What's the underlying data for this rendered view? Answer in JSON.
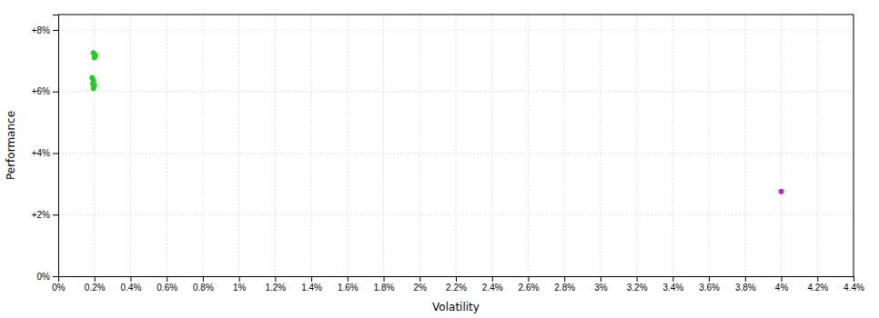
{
  "chart_data": {
    "type": "scatter",
    "xlabel": "Volatility",
    "ylabel": "Performance",
    "xlim": [
      0,
      4.4
    ],
    "ylim": [
      0,
      8.5
    ],
    "xticks": [
      {
        "value": 0,
        "label": "0%"
      },
      {
        "value": 0.2,
        "label": "0.2%"
      },
      {
        "value": 0.4,
        "label": "0.4%"
      },
      {
        "value": 0.6,
        "label": "0.6%"
      },
      {
        "value": 0.8,
        "label": "0.8%"
      },
      {
        "value": 1.0,
        "label": "1%"
      },
      {
        "value": 1.2,
        "label": "1.2%"
      },
      {
        "value": 1.4,
        "label": "1.4%"
      },
      {
        "value": 1.6,
        "label": "1.6%"
      },
      {
        "value": 1.8,
        "label": "1.8%"
      },
      {
        "value": 2.0,
        "label": "2%"
      },
      {
        "value": 2.2,
        "label": "2.2%"
      },
      {
        "value": 2.4,
        "label": "2.4%"
      },
      {
        "value": 2.6,
        "label": "2.6%"
      },
      {
        "value": 2.8,
        "label": "2.8%"
      },
      {
        "value": 3.0,
        "label": "3%"
      },
      {
        "value": 3.2,
        "label": "3.2%"
      },
      {
        "value": 3.4,
        "label": "3.4%"
      },
      {
        "value": 3.6,
        "label": "3.6%"
      },
      {
        "value": 3.8,
        "label": "3.8%"
      },
      {
        "value": 4.0,
        "label": "4%"
      },
      {
        "value": 4.2,
        "label": "4.2%"
      },
      {
        "value": 4.4,
        "label": "4.4%"
      }
    ],
    "yticks": [
      {
        "value": 0,
        "label": "0%"
      },
      {
        "value": 2,
        "label": "+2%"
      },
      {
        "value": 4,
        "label": "+4%"
      },
      {
        "value": 6,
        "label": "+6%"
      },
      {
        "value": 8,
        "label": "+8%"
      }
    ],
    "grid": true,
    "series": [
      {
        "color": "#22cc22",
        "x": [
          0.195,
          0.205,
          0.2
        ],
        "values": [
          7.25,
          7.18,
          7.1
        ]
      },
      {
        "color": "#22cc22",
        "x": [
          0.188,
          0.195,
          0.192,
          0.2,
          0.195
        ],
        "values": [
          6.45,
          6.35,
          6.25,
          6.2,
          6.1
        ]
      },
      {
        "color": "#cc22cc",
        "x": [
          4.0
        ],
        "values": [
          2.75
        ]
      }
    ]
  }
}
